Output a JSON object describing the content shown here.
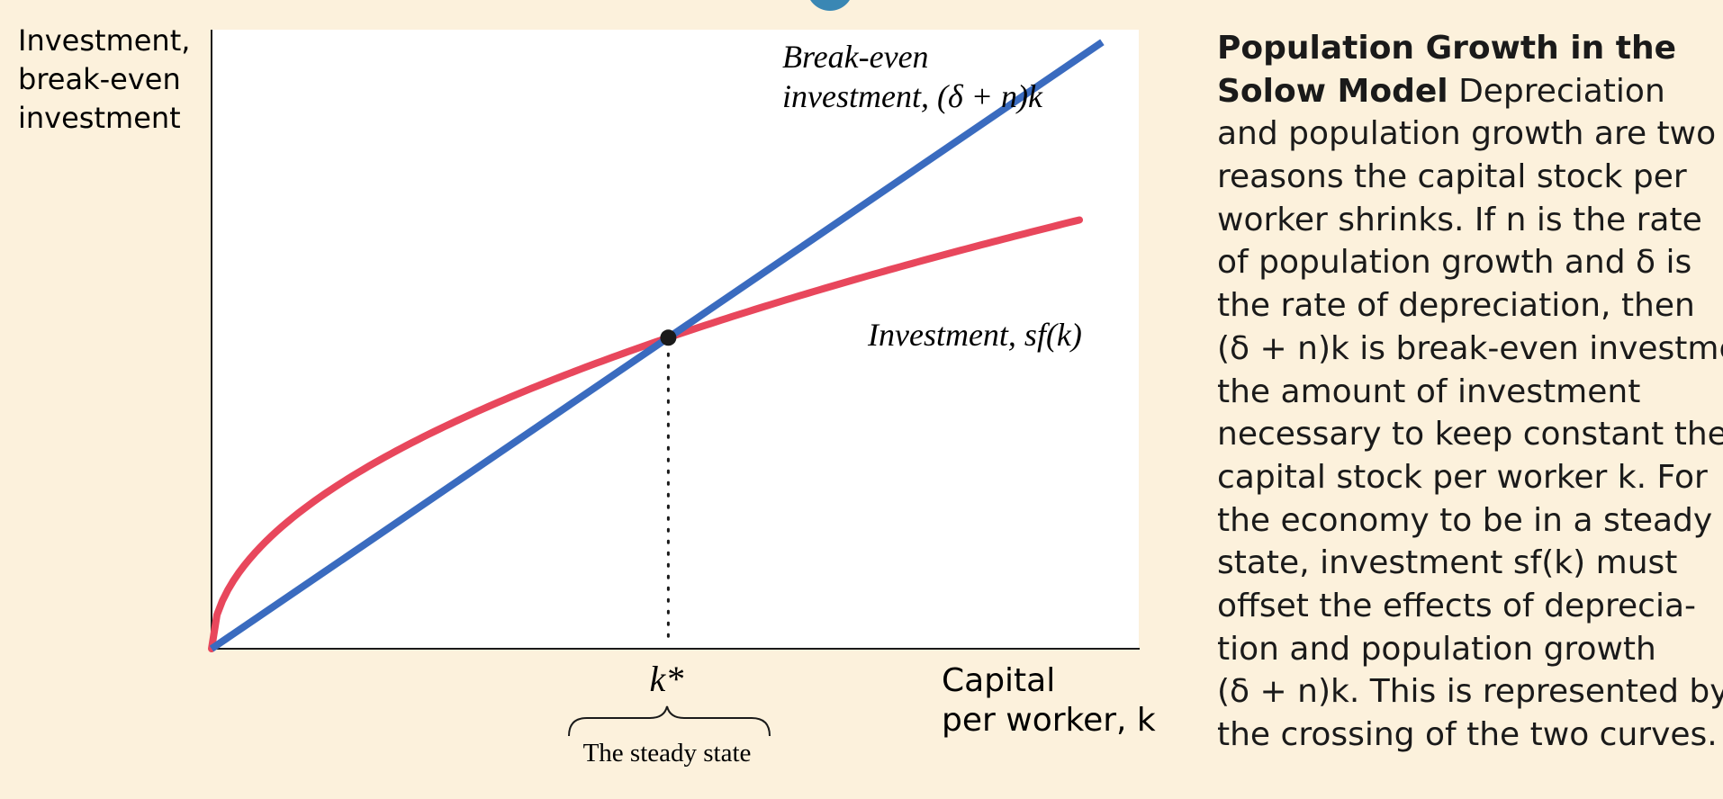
{
  "chart_data": {
    "type": "line",
    "ylabel": [
      "Investment,",
      "break-even",
      "investment"
    ],
    "xlabel": [
      "Capital",
      "per worker, k"
    ],
    "x_tick": "k*",
    "x_tick_x": 1.0,
    "brace_label": "The steady state",
    "xlim": [
      0,
      2.03
    ],
    "ylim": [
      0,
      1.99
    ],
    "steady_state": {
      "k": 1.0,
      "value": 1.0
    },
    "series": [
      {
        "name": "Break-even investment, (δ + n)k",
        "label_lines": [
          "Break-even",
          "investment, (δ + n)k"
        ],
        "color": "#3a6bbf",
        "function": "linear",
        "slope": 1.0,
        "x_range": [
          0,
          1.95
        ]
      },
      {
        "name": "Investment, sf(k)",
        "label_lines": [
          "Investment, sf(k)"
        ],
        "color": "#e8475c",
        "function": "power",
        "coefficient": 1.0,
        "exponent": 0.5,
        "x_range": [
          0,
          1.9
        ]
      }
    ],
    "grid": false,
    "marker_color": "#1a1a1a"
  },
  "caption": {
    "title_lines": [
      "Population Growth in the",
      "Solow Model"
    ],
    "body_lines": [
      "Depreciation",
      "and population growth are two",
      "reasons the capital stock per",
      "worker shrinks. If n is the rate",
      "of population growth and δ is",
      "the rate of depreciation, then",
      "(δ + n)k is break-even investment—",
      "the amount of investment",
      "necessary to keep constant the",
      "capital stock per worker k. For",
      "the economy to be in a steady",
      "state, investment sf(k) must",
      "offset the effects of deprecia-",
      "tion and population growth",
      "(δ + n)k. This is represented by",
      "the crossing of the two curves."
    ]
  },
  "colors": {
    "background": "#fcf1dc",
    "plot_area": "#ffffff",
    "break_even_line": "#3a6bbf",
    "investment_curve": "#e8475c",
    "top_circle": "#3a87b4"
  }
}
